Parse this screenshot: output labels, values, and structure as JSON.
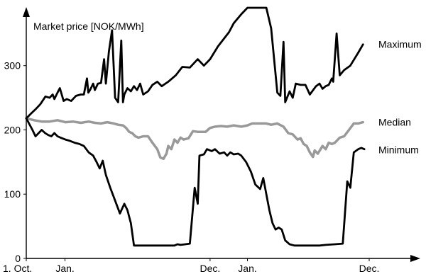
{
  "chart_data": {
    "type": "line",
    "title": "",
    "ylabel": "Market price [NOK/MWh]",
    "xlabel": "",
    "ylim": [
      0,
      390
    ],
    "xlim": [
      0,
      1
    ],
    "grid": false,
    "x_tick_labels": [
      {
        "x": 0.0,
        "label": "1. Oct."
      },
      {
        "x": 0.113,
        "label": "Jan."
      },
      {
        "x": 0.536,
        "label": "Dec."
      },
      {
        "x": 0.645,
        "label": "Jan."
      },
      {
        "x": 1.0,
        "label": "Dec."
      }
    ],
    "y_ticks": [
      0,
      100,
      200,
      300
    ],
    "series": [
      {
        "name": "Maximum",
        "color": "#000000",
        "points": [
          [
            0.0,
            218
          ],
          [
            0.013,
            225
          ],
          [
            0.027,
            232
          ],
          [
            0.041,
            240
          ],
          [
            0.056,
            252
          ],
          [
            0.068,
            250
          ],
          [
            0.077,
            255
          ],
          [
            0.082,
            248
          ],
          [
            0.091,
            258
          ],
          [
            0.098,
            265
          ],
          [
            0.109,
            245
          ],
          [
            0.118,
            248
          ],
          [
            0.131,
            245
          ],
          [
            0.145,
            253
          ],
          [
            0.159,
            255
          ],
          [
            0.168,
            255
          ],
          [
            0.177,
            280
          ],
          [
            0.181,
            258
          ],
          [
            0.186,
            262
          ],
          [
            0.195,
            272
          ],
          [
            0.2,
            262
          ],
          [
            0.209,
            272
          ],
          [
            0.218,
            273
          ],
          [
            0.227,
            310
          ],
          [
            0.232,
            272
          ],
          [
            0.241,
            322
          ],
          [
            0.25,
            355
          ],
          [
            0.259,
            250
          ],
          [
            0.268,
            243
          ],
          [
            0.277,
            339
          ],
          [
            0.282,
            243
          ],
          [
            0.286,
            255
          ],
          [
            0.295,
            265
          ],
          [
            0.305,
            260
          ],
          [
            0.314,
            268
          ],
          [
            0.323,
            262
          ],
          [
            0.332,
            272
          ],
          [
            0.341,
            255
          ],
          [
            0.355,
            260
          ],
          [
            0.368,
            270
          ],
          [
            0.382,
            275
          ],
          [
            0.395,
            268
          ],
          [
            0.414,
            275
          ],
          [
            0.436,
            285
          ],
          [
            0.455,
            298
          ],
          [
            0.477,
            297
          ],
          [
            0.5,
            310
          ],
          [
            0.518,
            300
          ],
          [
            0.536,
            310
          ],
          [
            0.559,
            330
          ],
          [
            0.591,
            352
          ],
          [
            0.605,
            366
          ],
          [
            0.627,
            380
          ],
          [
            0.645,
            398
          ],
          [
            0.7,
            400
          ],
          [
            0.714,
            358
          ],
          [
            0.732,
            258
          ],
          [
            0.741,
            253
          ],
          [
            0.75,
            337
          ],
          [
            0.755,
            243
          ],
          [
            0.768,
            260
          ],
          [
            0.777,
            250
          ],
          [
            0.786,
            272
          ],
          [
            0.8,
            270
          ],
          [
            0.814,
            270
          ],
          [
            0.827,
            255
          ],
          [
            0.845,
            268
          ],
          [
            0.855,
            272
          ],
          [
            0.864,
            264
          ],
          [
            0.873,
            268
          ],
          [
            0.882,
            270
          ],
          [
            0.891,
            280
          ],
          [
            0.895,
            275
          ],
          [
            0.905,
            350
          ],
          [
            0.914,
            285
          ],
          [
            0.927,
            293
          ],
          [
            0.945,
            300
          ],
          [
            0.968,
            320
          ],
          [
            0.982,
            333
          ]
        ]
      },
      {
        "name": "Median",
        "color": "#999999",
        "points": [
          [
            0.0,
            218
          ],
          [
            0.023,
            215
          ],
          [
            0.045,
            213
          ],
          [
            0.068,
            213
          ],
          [
            0.091,
            215
          ],
          [
            0.114,
            212
          ],
          [
            0.136,
            213
          ],
          [
            0.159,
            211
          ],
          [
            0.182,
            213
          ],
          [
            0.2,
            211
          ],
          [
            0.218,
            210
          ],
          [
            0.236,
            212
          ],
          [
            0.255,
            210
          ],
          [
            0.268,
            208
          ],
          [
            0.282,
            207
          ],
          [
            0.291,
            203
          ],
          [
            0.3,
            197
          ],
          [
            0.309,
            195
          ],
          [
            0.318,
            190
          ],
          [
            0.327,
            188
          ],
          [
            0.341,
            190
          ],
          [
            0.355,
            190
          ],
          [
            0.368,
            180
          ],
          [
            0.382,
            170
          ],
          [
            0.391,
            157
          ],
          [
            0.4,
            155
          ],
          [
            0.409,
            163
          ],
          [
            0.414,
            175
          ],
          [
            0.423,
            170
          ],
          [
            0.432,
            185
          ],
          [
            0.441,
            180
          ],
          [
            0.45,
            188
          ],
          [
            0.459,
            185
          ],
          [
            0.473,
            187
          ],
          [
            0.486,
            198
          ],
          [
            0.5,
            197
          ],
          [
            0.523,
            197
          ],
          [
            0.536,
            203
          ],
          [
            0.55,
            205
          ],
          [
            0.568,
            206
          ],
          [
            0.586,
            205
          ],
          [
            0.605,
            207
          ],
          [
            0.627,
            205
          ],
          [
            0.645,
            207
          ],
          [
            0.659,
            210
          ],
          [
            0.673,
            210
          ],
          [
            0.686,
            210
          ],
          [
            0.7,
            210
          ],
          [
            0.714,
            208
          ],
          [
            0.732,
            210
          ],
          [
            0.75,
            205
          ],
          [
            0.764,
            195
          ],
          [
            0.777,
            193
          ],
          [
            0.791,
            185
          ],
          [
            0.8,
            187
          ],
          [
            0.809,
            178
          ],
          [
            0.818,
            175
          ],
          [
            0.827,
            165
          ],
          [
            0.836,
            158
          ],
          [
            0.841,
            168
          ],
          [
            0.85,
            163
          ],
          [
            0.864,
            175
          ],
          [
            0.873,
            170
          ],
          [
            0.882,
            180
          ],
          [
            0.891,
            178
          ],
          [
            0.9,
            180
          ],
          [
            0.914,
            188
          ],
          [
            0.927,
            190
          ],
          [
            0.941,
            200
          ],
          [
            0.955,
            210
          ],
          [
            0.968,
            210
          ],
          [
            0.982,
            212
          ]
        ]
      },
      {
        "name": "Minimum",
        "color": "#000000",
        "points": [
          [
            0.0,
            218
          ],
          [
            0.018,
            200
          ],
          [
            0.027,
            190
          ],
          [
            0.036,
            195
          ],
          [
            0.045,
            200
          ],
          [
            0.055,
            195
          ],
          [
            0.064,
            192
          ],
          [
            0.073,
            190
          ],
          [
            0.082,
            195
          ],
          [
            0.091,
            190
          ],
          [
            0.1,
            188
          ],
          [
            0.114,
            185
          ],
          [
            0.127,
            183
          ],
          [
            0.141,
            180
          ],
          [
            0.155,
            178
          ],
          [
            0.168,
            175
          ],
          [
            0.182,
            165
          ],
          [
            0.195,
            160
          ],
          [
            0.205,
            150
          ],
          [
            0.214,
            140
          ],
          [
            0.223,
            152
          ],
          [
            0.232,
            130
          ],
          [
            0.245,
            110
          ],
          [
            0.259,
            90
          ],
          [
            0.273,
            70
          ],
          [
            0.286,
            85
          ],
          [
            0.295,
            75
          ],
          [
            0.305,
            55
          ],
          [
            0.314,
            20
          ],
          [
            0.323,
            20
          ],
          [
            0.332,
            20
          ],
          [
            0.35,
            20
          ],
          [
            0.368,
            20
          ],
          [
            0.382,
            20
          ],
          [
            0.395,
            20
          ],
          [
            0.414,
            20
          ],
          [
            0.432,
            20
          ],
          [
            0.441,
            22
          ],
          [
            0.45,
            21
          ],
          [
            0.464,
            22
          ],
          [
            0.477,
            23
          ],
          [
            0.491,
            110
          ],
          [
            0.5,
            85
          ],
          [
            0.505,
            160
          ],
          [
            0.518,
            162
          ],
          [
            0.527,
            170
          ],
          [
            0.541,
            167
          ],
          [
            0.55,
            170
          ],
          [
            0.564,
            163
          ],
          [
            0.577,
            165
          ],
          [
            0.586,
            160
          ],
          [
            0.595,
            165
          ],
          [
            0.605,
            162
          ],
          [
            0.618,
            163
          ],
          [
            0.627,
            160
          ],
          [
            0.641,
            150
          ],
          [
            0.655,
            135
          ],
          [
            0.668,
            115
          ],
          [
            0.682,
            108
          ],
          [
            0.691,
            125
          ],
          [
            0.7,
            100
          ],
          [
            0.709,
            75
          ],
          [
            0.718,
            55
          ],
          [
            0.727,
            45
          ],
          [
            0.736,
            48
          ],
          [
            0.745,
            45
          ],
          [
            0.755,
            28
          ],
          [
            0.768,
            22
          ],
          [
            0.782,
            20
          ],
          [
            0.8,
            20
          ],
          [
            0.827,
            20
          ],
          [
            0.855,
            20
          ],
          [
            0.873,
            21
          ],
          [
            0.9,
            22
          ],
          [
            0.923,
            23
          ],
          [
            0.936,
            120
          ],
          [
            0.945,
            110
          ],
          [
            0.955,
            165
          ],
          [
            0.968,
            170
          ],
          [
            0.977,
            172
          ],
          [
            0.986,
            170
          ]
        ]
      }
    ]
  }
}
